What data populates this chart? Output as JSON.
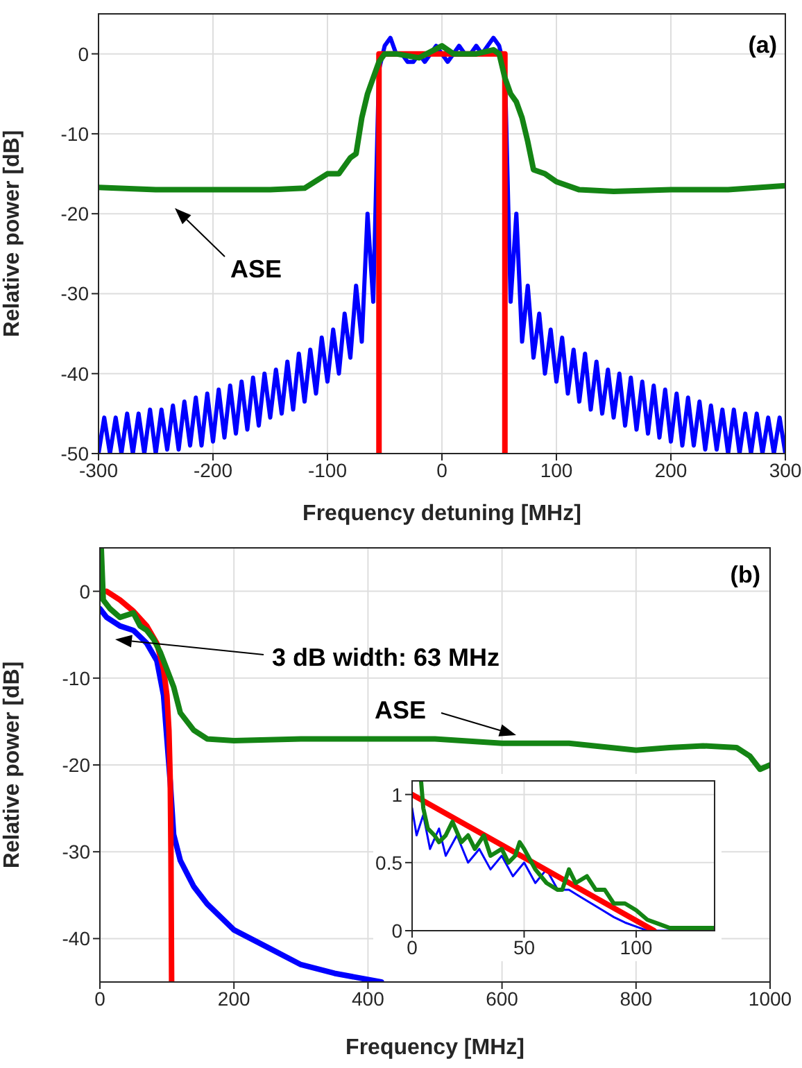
{
  "chart_data": [
    {
      "type": "line",
      "xlabel": "Frequency detuning [MHz]",
      "ylabel": "Relative power [dB]",
      "xlim": [
        -300,
        300
      ],
      "xticks": [
        -300,
        -200,
        -100,
        0,
        100,
        200,
        300
      ],
      "ylim": [
        -50,
        5
      ],
      "yticks": [
        -50,
        -40,
        -30,
        -20,
        -10,
        0
      ],
      "grid": true,
      "annotations": [
        "(a)",
        "ASE"
      ],
      "series": [
        {
          "color": "#0000ff",
          "x": [
            -300,
            -295,
            -290,
            -285,
            -280,
            -275,
            -270,
            -265,
            -260,
            -255,
            -250,
            -245,
            -240,
            -235,
            -230,
            -225,
            -220,
            -215,
            -210,
            -205,
            -200,
            -195,
            -190,
            -185,
            -180,
            -175,
            -170,
            -165,
            -160,
            -155,
            -150,
            -145,
            -140,
            -135,
            -130,
            -125,
            -120,
            -115,
            -110,
            -105,
            -100,
            -95,
            -90,
            -85,
            -80,
            -75,
            -70,
            -65,
            -60,
            -55,
            -50,
            -45,
            -40,
            -35,
            -30,
            -25,
            -20,
            -15,
            -10,
            -5,
            0,
            5,
            10,
            15,
            20,
            25,
            30,
            35,
            40,
            45,
            50,
            55,
            60,
            65,
            70,
            75,
            80,
            85,
            90,
            95,
            100,
            105,
            110,
            115,
            120,
            125,
            130,
            135,
            140,
            145,
            150,
            155,
            160,
            165,
            170,
            175,
            180,
            185,
            190,
            195,
            200,
            205,
            210,
            215,
            220,
            225,
            230,
            235,
            240,
            245,
            250,
            255,
            260,
            265,
            270,
            275,
            280,
            285,
            290,
            295,
            300
          ],
          "values": [
            -50,
            -45.5,
            -50,
            -45.5,
            -50,
            -45,
            -50,
            -45,
            -50,
            -44.5,
            -50,
            -44.5,
            -49.5,
            -44,
            -49.5,
            -43.5,
            -49,
            -43,
            -49,
            -42.5,
            -48.5,
            -42,
            -48,
            -41.5,
            -47.5,
            -41,
            -47,
            -40.5,
            -46.5,
            -40,
            -45.5,
            -39.5,
            -45,
            -38.5,
            -44.5,
            -37.5,
            -43.5,
            -37,
            -42.5,
            -35.5,
            -41,
            -34.5,
            -40,
            -32.5,
            -38,
            -29,
            -36,
            -20,
            -31,
            -2,
            1,
            2,
            0,
            0,
            -1,
            -1,
            0,
            -1,
            0,
            1,
            0,
            -1,
            0,
            1,
            0,
            0,
            1,
            0,
            1,
            2,
            1,
            -2,
            -31,
            -20,
            -36,
            -29,
            -38,
            -32.5,
            -40,
            -34.5,
            -41,
            -35.5,
            -42.5,
            -37,
            -43.5,
            -37.5,
            -44.5,
            -38.5,
            -45,
            -39.5,
            -45.5,
            -40,
            -46.5,
            -40.5,
            -47,
            -41,
            -47.5,
            -41.5,
            -48,
            -42,
            -48.5,
            -42.5,
            -49,
            -43,
            -49,
            -43.5,
            -49.5,
            -44,
            -49.5,
            -44.5,
            -50,
            -44.5,
            -50,
            -45,
            -50,
            -45,
            -50,
            -45.5,
            -50,
            -45.5,
            -50
          ]
        },
        {
          "color": "#ff0000",
          "x": [
            -55,
            -55,
            55,
            55
          ],
          "values": [
            -50,
            0,
            0,
            -50
          ]
        },
        {
          "color": "#148414",
          "x": [
            -300,
            -250,
            -200,
            -150,
            -120,
            -100,
            -90,
            -80,
            -75,
            -70,
            -65,
            -60,
            -55,
            -50,
            -40,
            -20,
            0,
            10,
            30,
            45,
            50,
            55,
            60,
            65,
            70,
            75,
            80,
            90,
            100,
            120,
            150,
            200,
            250,
            300
          ],
          "values": [
            -16.7,
            -17,
            -17,
            -17,
            -16.8,
            -15,
            -15,
            -13,
            -12.5,
            -8,
            -5,
            -3,
            -1,
            0,
            0,
            -0.5,
            1,
            0,
            0,
            0.5,
            0,
            -3,
            -5,
            -6,
            -8,
            -11,
            -14.5,
            -15,
            -16,
            -17,
            -17.2,
            -17,
            -17,
            -16.5
          ]
        }
      ]
    },
    {
      "type": "line",
      "xlabel": "Frequency [MHz]",
      "ylabel": "Relative power [dB]",
      "xlim": [
        0,
        1000
      ],
      "xticks": [
        0,
        200,
        400,
        600,
        800,
        1000
      ],
      "ylim": [
        -45,
        5
      ],
      "yticks": [
        -40,
        -30,
        -20,
        -10,
        0
      ],
      "grid": true,
      "annotations": [
        "(b)",
        "3 dB width: 63 MHz",
        "ASE"
      ],
      "series": [
        {
          "color": "#0000ff",
          "x": [
            0,
            10,
            30,
            50,
            70,
            85,
            95,
            100,
            105,
            110,
            120,
            140,
            160,
            200,
            250,
            300,
            350,
            420
          ],
          "values": [
            -2,
            -3,
            -4,
            -4.5,
            -6,
            -8,
            -12,
            -17,
            -22,
            -28,
            -31,
            -34,
            -36,
            -39,
            -41,
            -43,
            -44,
            -45
          ]
        },
        {
          "color": "#ff0000",
          "x": [
            10,
            30,
            50,
            70,
            85,
            95,
            100,
            103,
            105,
            106,
            107
          ],
          "values": [
            0,
            -1,
            -2.3,
            -4,
            -6,
            -9,
            -12,
            -16,
            -22,
            -30,
            -45
          ]
        },
        {
          "color": "#148414",
          "x": [
            2,
            5,
            15,
            30,
            50,
            60,
            70,
            80,
            90,
            100,
            110,
            120,
            140,
            160,
            200,
            300,
            400,
            500,
            600,
            700,
            800,
            850,
            900,
            950,
            970,
            985,
            1000
          ],
          "values": [
            5,
            -1,
            -2,
            -3,
            -2.5,
            -4,
            -4.5,
            -5.5,
            -7,
            -9,
            -11,
            -14,
            -16,
            -17,
            -17.2,
            -17,
            -17,
            -17,
            -17.5,
            -17.5,
            -18.3,
            -18,
            -17.8,
            -18,
            -19,
            -20.5,
            -20
          ]
        }
      ]
    },
    {
      "type": "line",
      "xlim": [
        0,
        135
      ],
      "xticks": [
        0,
        50,
        100
      ],
      "ylim": [
        0,
        1.1
      ],
      "yticks": [
        0,
        0.5,
        1
      ],
      "grid": true,
      "series": [
        {
          "color": "#0000ff",
          "x": [
            0,
            2,
            5,
            8,
            12,
            15,
            20,
            25,
            30,
            35,
            40,
            45,
            50,
            55,
            60,
            65,
            70,
            75,
            80,
            85,
            90,
            95,
            100,
            105,
            135
          ],
          "values": [
            0.9,
            0.7,
            0.85,
            0.6,
            0.75,
            0.55,
            0.7,
            0.5,
            0.6,
            0.45,
            0.55,
            0.4,
            0.5,
            0.35,
            0.45,
            0.3,
            0.3,
            0.25,
            0.2,
            0.15,
            0.1,
            0.06,
            0.03,
            0,
            0
          ]
        },
        {
          "color": "#ff0000",
          "x": [
            0,
            108
          ],
          "values": [
            1,
            0
          ]
        },
        {
          "color": "#148414",
          "x": [
            4,
            5,
            7,
            10,
            12,
            15,
            18,
            22,
            25,
            28,
            32,
            35,
            40,
            43,
            46,
            48,
            50,
            55,
            60,
            65,
            67,
            70,
            73,
            78,
            82,
            86,
            90,
            95,
            100,
            105,
            110,
            115,
            135
          ],
          "values": [
            1.1,
            0.9,
            0.75,
            0.7,
            0.65,
            0.7,
            0.8,
            0.65,
            0.7,
            0.6,
            0.7,
            0.55,
            0.6,
            0.5,
            0.55,
            0.65,
            0.6,
            0.45,
            0.35,
            0.3,
            0.3,
            0.45,
            0.35,
            0.4,
            0.3,
            0.3,
            0.2,
            0.2,
            0.15,
            0.08,
            0.05,
            0.02,
            0.02
          ]
        }
      ]
    }
  ]
}
